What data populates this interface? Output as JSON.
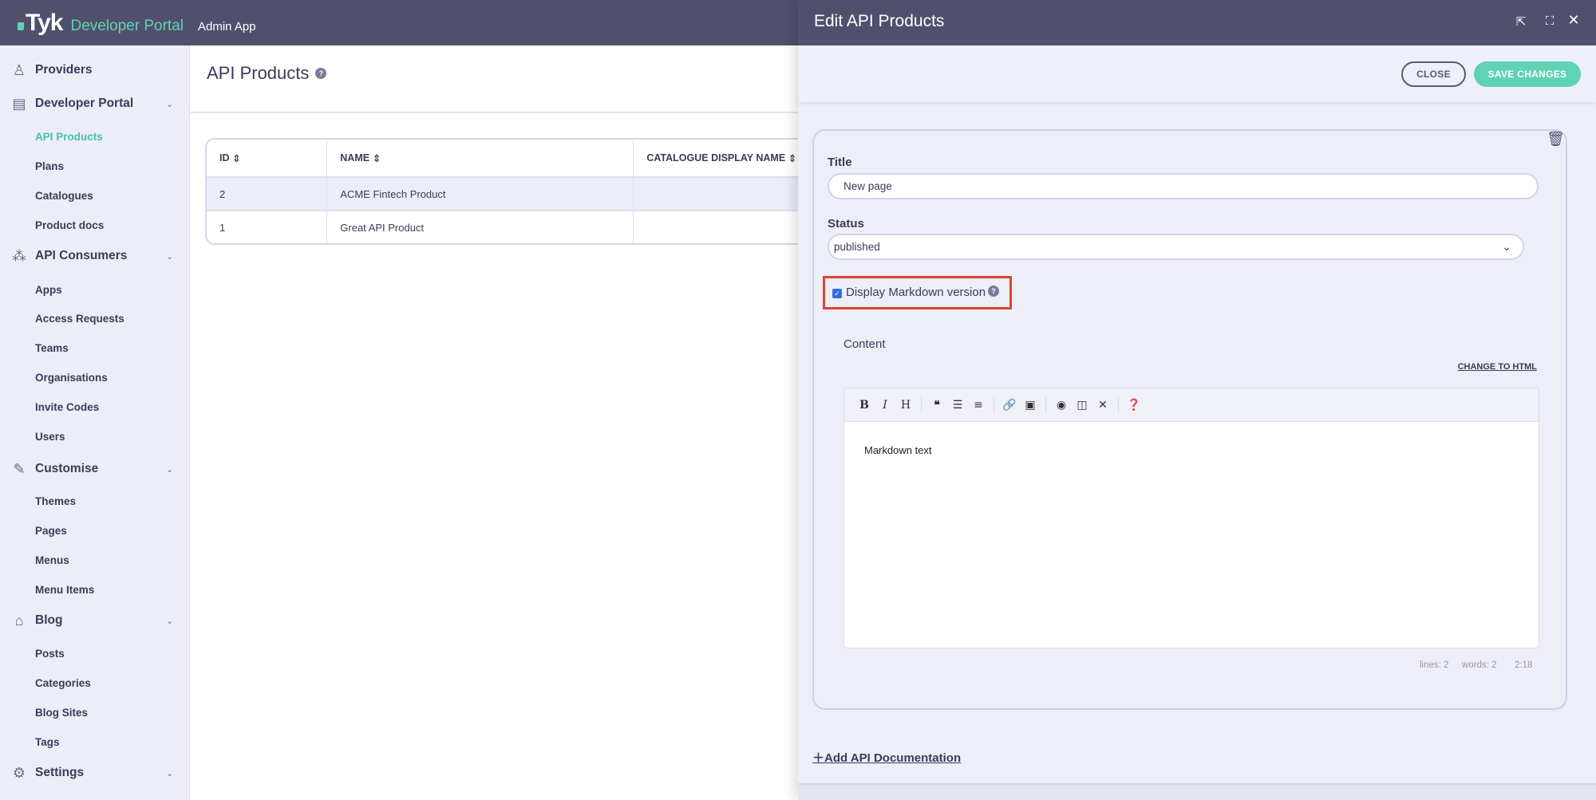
{
  "topbar": {
    "logo_text": "Tyk",
    "product": "Developer Portal",
    "app": "Admin App"
  },
  "sidebar": {
    "sections": [
      {
        "label": "Providers",
        "icon": "providers-icon",
        "items": []
      },
      {
        "label": "Developer Portal",
        "icon": "developer-portal-icon",
        "items": [
          "API Products",
          "Plans",
          "Catalogues",
          "Product docs"
        ]
      },
      {
        "label": "API Consumers",
        "icon": "api-consumers-icon",
        "items": [
          "Apps",
          "Access Requests",
          "Teams",
          "Organisations",
          "Invite Codes",
          "Users"
        ]
      },
      {
        "label": "Customise",
        "icon": "brush-icon",
        "items": [
          "Themes",
          "Pages",
          "Menus",
          "Menu Items"
        ]
      },
      {
        "label": "Blog",
        "icon": "blog-icon",
        "items": [
          "Posts",
          "Categories",
          "Blog Sites",
          "Tags"
        ]
      },
      {
        "label": "Settings",
        "icon": "gear-icon",
        "items": []
      }
    ],
    "active_item": "API Products"
  },
  "main": {
    "title": "API Products",
    "table": {
      "columns": [
        "ID",
        "NAME",
        "CATALOGUE DISPLAY NAME"
      ],
      "rows": [
        {
          "id": "2",
          "name": "ACME Fintech Product",
          "catalogue": ""
        },
        {
          "id": "1",
          "name": "Great API Product",
          "catalogue": ""
        }
      ]
    }
  },
  "drawer": {
    "title": "Edit API Products",
    "close_label": "CLOSE",
    "save_label": "SAVE CHANGES",
    "form": {
      "title_label": "Title",
      "title_value": "New page",
      "status_label": "Status",
      "status_value": "published",
      "markdown_checkbox_label": "Display Markdown version",
      "markdown_checked": true,
      "content_label": "Content",
      "change_to_html": "CHANGE TO HTML",
      "editor_text": "Markdown text",
      "status_lines": "lines: 2",
      "status_words": "words: 2",
      "status_cursor": "2:18"
    },
    "add_doc_label": "Add API Documentation"
  },
  "colors": {
    "header": "#50506e",
    "accent": "#5fd3b4",
    "highlight_box": "#e0442e",
    "sidebar_bg": "#ededf8"
  }
}
